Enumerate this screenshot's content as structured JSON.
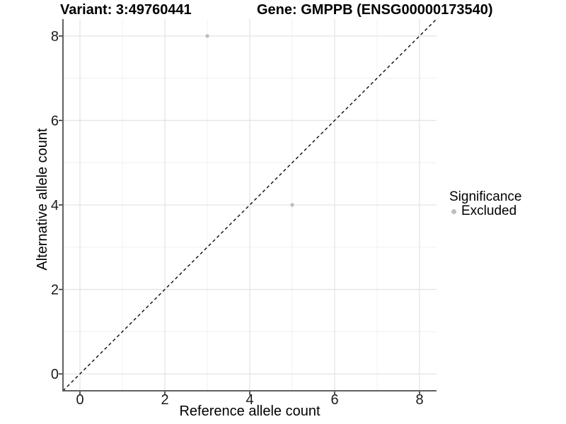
{
  "titles": {
    "variant": "Variant: 3:49760441",
    "gene": "Gene: GMPPB (ENSG00000173540)"
  },
  "axes": {
    "x_label": "Reference allele count",
    "y_label": "Alternative allele count"
  },
  "legend": {
    "title": "Significance",
    "items": [
      {
        "label": "Excluded",
        "color": "#bebebe"
      }
    ]
  },
  "colors": {
    "point": "#bebebe",
    "reference_line": "#0a0a0a",
    "axis_line": "#606060",
    "tick_mark": "#333333",
    "tick_label": "#1a1a1a",
    "grid_major": "#e4e4e4",
    "grid_minor": "#f0f0f0",
    "background": "#ffffff"
  },
  "chart_data": {
    "type": "scatter",
    "title": "Variant: 3:49760441 | Gene: GMPPB (ENSG00000173540)",
    "xlabel": "Reference allele count",
    "ylabel": "Alternative allele count",
    "xlim": [
      -0.4,
      8.4
    ],
    "ylim": [
      -0.4,
      8.4
    ],
    "x_ticks": [
      0,
      2,
      4,
      6,
      8
    ],
    "y_ticks": [
      0,
      2,
      4,
      6,
      8
    ],
    "grid_minor_x": [
      1,
      3,
      5,
      7
    ],
    "grid_minor_y": [
      1,
      3,
      5,
      7
    ],
    "grid": "on",
    "legend_position": "right",
    "legend_title": "Significance",
    "series": [
      {
        "name": "Excluded",
        "color": "#bebebe",
        "point_radius": 2.7,
        "points": [
          [
            3,
            8
          ],
          [
            5,
            4
          ]
        ]
      }
    ],
    "reference_line": {
      "slope": 1,
      "intercept": 0,
      "style": "dashed",
      "color": "#0a0a0a"
    }
  }
}
